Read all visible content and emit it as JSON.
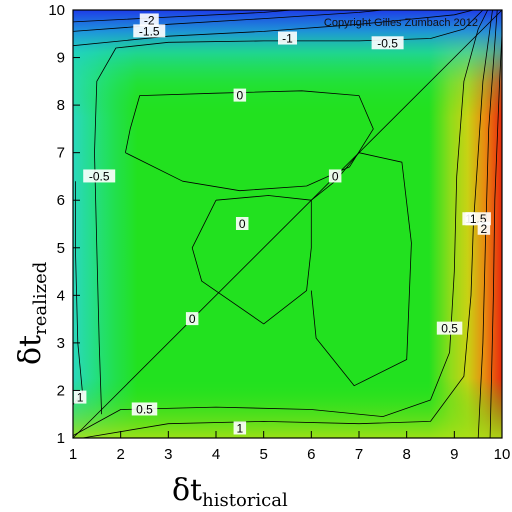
{
  "chart_data": {
    "type": "contour",
    "title": "",
    "copyright": "Copyright Gilles Zumbach 2012",
    "xlabel": {
      "symbol": "δt",
      "subscript": "historical"
    },
    "ylabel": {
      "symbol": "δt",
      "subscript": "realized"
    },
    "xlim": [
      1,
      10
    ],
    "ylim": [
      1,
      10
    ],
    "x_ticks": [
      "1",
      "2",
      "3",
      "4",
      "5",
      "6",
      "7",
      "8",
      "9",
      "10"
    ],
    "y_ticks": [
      "1",
      "2",
      "3",
      "4",
      "5",
      "6",
      "7",
      "8",
      "9",
      "10"
    ],
    "colors": {
      "negative": "#1e3ce8",
      "zero": "#22e11f",
      "positive": "#e8280c"
    },
    "diagonal": {
      "from": [
        1,
        1
      ],
      "to": [
        10,
        10
      ]
    },
    "contours": [
      {
        "level": -2,
        "points": [
          [
            1,
            9.75
          ],
          [
            3,
            9.85
          ],
          [
            5,
            9.95
          ],
          [
            5.6,
            10
          ]
        ]
      },
      {
        "level": -1.5,
        "points": [
          [
            1,
            9.55
          ],
          [
            3,
            9.7
          ],
          [
            5,
            9.82
          ],
          [
            7,
            9.95
          ],
          [
            7.5,
            10
          ]
        ]
      },
      {
        "level": -1,
        "points": [
          [
            1,
            9.25
          ],
          [
            3,
            9.45
          ],
          [
            5,
            9.55
          ],
          [
            7,
            9.7
          ],
          [
            9,
            9.9
          ],
          [
            9.4,
            10
          ]
        ]
      },
      {
        "level": -0.5,
        "points": [
          [
            1.6,
            1.5
          ],
          [
            1.55,
            3
          ],
          [
            1.5,
            5
          ],
          [
            1.45,
            7
          ],
          [
            1.5,
            8.5
          ],
          [
            1.9,
            9.2
          ],
          [
            3,
            9.32
          ],
          [
            5,
            9.35
          ],
          [
            7,
            9.35
          ],
          [
            8.5,
            9.4
          ],
          [
            9.2,
            9.6
          ],
          [
            9.6,
            10
          ]
        ]
      },
      {
        "level": 0,
        "points": [
          [
            2.1,
            7
          ],
          [
            2.2,
            7.5
          ],
          [
            2.4,
            8.2
          ],
          [
            4,
            8.25
          ],
          [
            5.8,
            8.3
          ],
          [
            7,
            8.2
          ],
          [
            7.3,
            7.5
          ],
          [
            6.8,
            6.7
          ],
          [
            5.9,
            6.3
          ],
          [
            4.5,
            6.2
          ],
          [
            3.3,
            6.4
          ],
          [
            2.1,
            7
          ]
        ]
      },
      {
        "level": 0,
        "points": [
          [
            4,
            6
          ],
          [
            3.5,
            5
          ],
          [
            3.7,
            4.3
          ],
          [
            5,
            3.4
          ],
          [
            5.9,
            4.1
          ],
          [
            6,
            5
          ],
          [
            6,
            6
          ],
          [
            5.1,
            6.1
          ],
          [
            4,
            6
          ]
        ]
      },
      {
        "level": 0,
        "points": [
          [
            6,
            4.1
          ],
          [
            6.1,
            3.1
          ],
          [
            6.9,
            2.1
          ],
          [
            8,
            2.65
          ],
          [
            8.1,
            5.1
          ],
          [
            7.9,
            6.8
          ],
          [
            7,
            7
          ],
          [
            6.5,
            6.4
          ],
          [
            6,
            6
          ]
        ]
      },
      {
        "level": 0.5,
        "points": [
          [
            1,
            1.05
          ],
          [
            2,
            1.6
          ],
          [
            4,
            1.65
          ],
          [
            6,
            1.6
          ],
          [
            7.5,
            1.45
          ],
          [
            8.5,
            1.8
          ],
          [
            8.9,
            2.8
          ],
          [
            9,
            4.5
          ],
          [
            9.05,
            6.5
          ],
          [
            9.2,
            8.5
          ],
          [
            9.5,
            9.6
          ],
          [
            9.7,
            10
          ]
        ]
      },
      {
        "level": 1,
        "points": [
          [
            1,
            1.7
          ],
          [
            1.2,
            1.95
          ],
          [
            1.1,
            3
          ],
          [
            1.05,
            5
          ],
          [
            1.05,
            6.4
          ]
        ]
      },
      {
        "level": 1,
        "points": [
          [
            1.2,
            1
          ],
          [
            3,
            1.3
          ],
          [
            5,
            1.35
          ],
          [
            7,
            1.3
          ],
          [
            8.5,
            1.35
          ],
          [
            9.2,
            2.3
          ],
          [
            9.35,
            4
          ],
          [
            9.4,
            5.5
          ],
          [
            9.5,
            7
          ],
          [
            9.6,
            8.5
          ],
          [
            9.8,
            10
          ]
        ]
      },
      {
        "level": 1.5,
        "points": [
          [
            9.5,
            1
          ],
          [
            9.6,
            3
          ],
          [
            9.65,
            5
          ],
          [
            9.72,
            7.5
          ],
          [
            9.9,
            10
          ]
        ]
      },
      {
        "level": 2,
        "points": [
          [
            9.75,
            1
          ],
          [
            9.82,
            4
          ],
          [
            9.85,
            6
          ],
          [
            9.95,
            8.5
          ],
          [
            10,
            9.5
          ]
        ]
      }
    ],
    "contour_labels": [
      {
        "text": "-2",
        "x": 2.6,
        "y": 9.78
      },
      {
        "text": "-1.5",
        "x": 2.6,
        "y": 9.55
      },
      {
        "text": "-1",
        "x": 5.5,
        "y": 9.4
      },
      {
        "text": "-0.5",
        "x": 7.6,
        "y": 9.3
      },
      {
        "text": "0",
        "x": 4.5,
        "y": 8.2
      },
      {
        "text": "-0.5",
        "x": 1.55,
        "y": 6.5
      },
      {
        "text": "0",
        "x": 6.5,
        "y": 6.5
      },
      {
        "text": "0",
        "x": 4.55,
        "y": 5.5
      },
      {
        "text": "0",
        "x": 3.5,
        "y": 3.5
      },
      {
        "text": "1",
        "x": 9.3,
        "y": 5.6
      },
      {
        "text": "1.5",
        "x": 9.5,
        "y": 5.6
      },
      {
        "text": "2",
        "x": 9.62,
        "y": 5.4
      },
      {
        "text": "0.5",
        "x": 8.9,
        "y": 3.3
      },
      {
        "text": "1",
        "x": 1.15,
        "y": 1.85
      },
      {
        "text": "0.5",
        "x": 2.5,
        "y": 1.6
      },
      {
        "text": "1",
        "x": 4.5,
        "y": 1.2
      }
    ],
    "grid": false,
    "colorbar": false
  }
}
